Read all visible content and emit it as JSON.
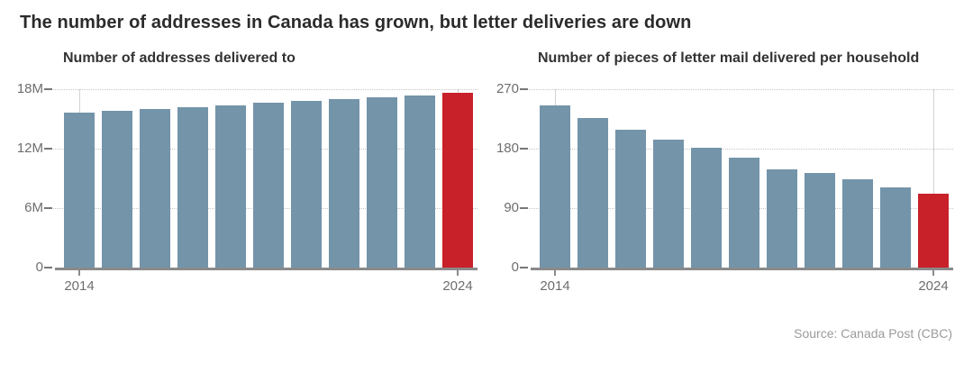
{
  "page": {
    "title": "The number of addresses in Canada has grown, but letter deliveries are down",
    "source": "Source: Canada Post (CBC)"
  },
  "colors": {
    "bar": "#7394a9",
    "highlight": "#c8212a",
    "title_text": "#2b2b2b",
    "axis_text": "#6e6e6e",
    "gridline": "#c6c6c6",
    "baseline": "#8a8a8a",
    "source_text": "#9b9b9b"
  },
  "chart_data": [
    {
      "type": "bar",
      "title": "Number of addresses delivered to",
      "categories": [
        "2014",
        "2015",
        "2016",
        "2017",
        "2018",
        "2019",
        "2020",
        "2021",
        "2022",
        "2023",
        "2024"
      ],
      "values": [
        15.6,
        15.8,
        16.0,
        16.2,
        16.4,
        16.6,
        16.8,
        17.0,
        17.2,
        17.4,
        17.6
      ],
      "values_unit": "million addresses",
      "ylim": [
        0,
        18
      ],
      "yticks": [
        {
          "value": 0,
          "label": "0"
        },
        {
          "value": 6,
          "label": "6M"
        },
        {
          "value": 12,
          "label": "12M"
        },
        {
          "value": 18,
          "label": "18M"
        }
      ],
      "xtick_labels": [
        "2014",
        "2024"
      ],
      "highlight_last": true,
      "grid": "horizontal-dotted",
      "legend": "none"
    },
    {
      "type": "bar",
      "title": "Number of pieces of letter mail delivered per household",
      "categories": [
        "2014",
        "2015",
        "2016",
        "2017",
        "2018",
        "2019",
        "2020",
        "2021",
        "2022",
        "2023",
        "2024"
      ],
      "values": [
        245,
        227,
        209,
        194,
        181,
        167,
        148,
        143,
        133,
        122,
        112
      ],
      "values_unit": "pieces of letter mail per household",
      "ylim": [
        0,
        270
      ],
      "yticks": [
        {
          "value": 0,
          "label": "0"
        },
        {
          "value": 90,
          "label": "90"
        },
        {
          "value": 180,
          "label": "180"
        },
        {
          "value": 270,
          "label": "270"
        }
      ],
      "xtick_labels": [
        "2014",
        "2024"
      ],
      "highlight_last": true,
      "grid": "horizontal-dotted",
      "legend": "none"
    }
  ]
}
